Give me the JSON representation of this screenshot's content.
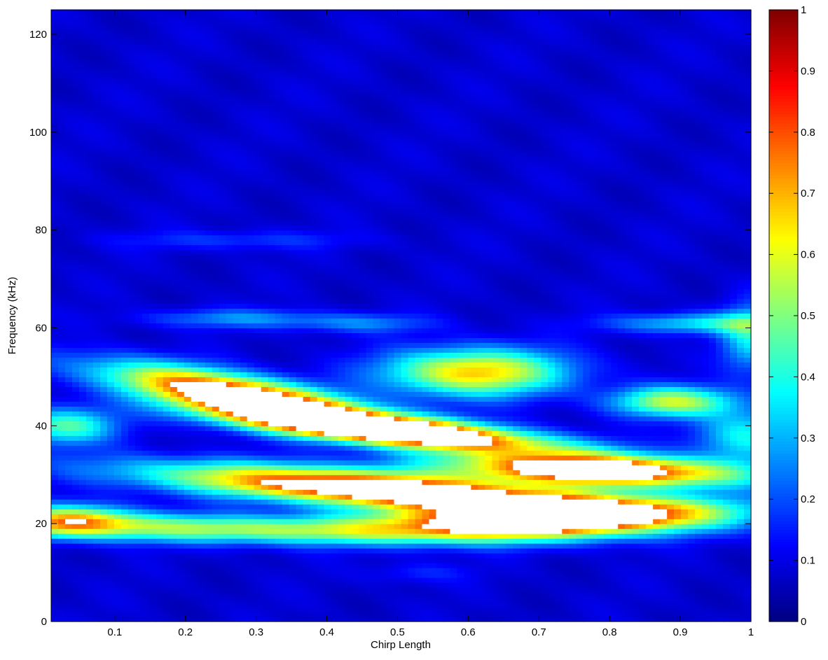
{
  "chart_data": {
    "type": "heatmap",
    "title": "",
    "xlabel": "Chirp Length",
    "ylabel": "Frequency (kHz)",
    "xlim": [
      0.01,
      1.0
    ],
    "ylim": [
      0,
      125
    ],
    "xticks": [
      0.1,
      0.2,
      0.3,
      0.4,
      0.5,
      0.6,
      0.7,
      0.8,
      0.9,
      1
    ],
    "xtick_labels": [
      "0.1",
      "0.2",
      "0.3",
      "0.4",
      "0.5",
      "0.6",
      "0.7",
      "0.8",
      "0.9",
      "1"
    ],
    "yticks": [
      0,
      20,
      40,
      60,
      80,
      100,
      120
    ],
    "ytick_labels": [
      "0",
      "20",
      "40",
      "60",
      "80",
      "100",
      "120"
    ],
    "colormap": "jet",
    "colorbar": {
      "range": [
        0,
        1
      ],
      "ticks": [
        0,
        0.1,
        0.2,
        0.3,
        0.4,
        0.5,
        0.6,
        0.7,
        0.8,
        0.9,
        1
      ],
      "tick_labels": [
        "0",
        "0.1",
        "0.2",
        "0.3",
        "0.4",
        "0.5",
        "0.6",
        "0.7",
        "0.8",
        "0.9",
        "1"
      ],
      "placement": "right"
    },
    "saturation_color": "#ffffff",
    "background_value": 0.08,
    "features": [
      {
        "x": 0.28,
        "y": 46,
        "sx": 0.13,
        "sy": 3.0,
        "angle_kHz_per_unit": -25,
        "amp": 0.9
      },
      {
        "x": 0.5,
        "y": 39,
        "sx": 0.16,
        "sy": 2.2,
        "angle_kHz_per_unit": -14,
        "amp": 0.92
      },
      {
        "x": 0.78,
        "y": 31,
        "sx": 0.14,
        "sy": 2.2,
        "angle_kHz_per_unit": -5,
        "amp": 0.9
      },
      {
        "x": 0.48,
        "y": 27,
        "sx": 0.22,
        "sy": 2.6,
        "angle_kHz_per_unit": -10,
        "amp": 0.92
      },
      {
        "x": 0.72,
        "y": 21,
        "sx": 0.16,
        "sy": 2.6,
        "angle_kHz_per_unit": 5,
        "amp": 0.95
      },
      {
        "x": 0.25,
        "y": 19,
        "sx": 0.25,
        "sy": 2.0,
        "angle_kHz_per_unit": -2,
        "amp": 0.45
      },
      {
        "x": 0.04,
        "y": 21,
        "sx": 0.06,
        "sy": 2.2,
        "angle_kHz_per_unit": 0,
        "amp": 0.45
      },
      {
        "x": 0.03,
        "y": 40,
        "sx": 0.05,
        "sy": 2.6,
        "angle_kHz_per_unit": 0,
        "amp": 0.38
      },
      {
        "x": 0.61,
        "y": 51,
        "sx": 0.09,
        "sy": 3.4,
        "angle_kHz_per_unit": 0,
        "amp": 0.6
      },
      {
        "x": 0.89,
        "y": 45,
        "sx": 0.06,
        "sy": 2.2,
        "angle_kHz_per_unit": 0,
        "amp": 0.48
      },
      {
        "x": 0.93,
        "y": 61,
        "sx": 0.09,
        "sy": 1.5,
        "angle_kHz_per_unit": 0,
        "amp": 0.28
      },
      {
        "x": 0.99,
        "y": 38,
        "sx": 0.05,
        "sy": 4.0,
        "angle_kHz_per_unit": 0,
        "amp": 0.3
      },
      {
        "x": 1.0,
        "y": 58,
        "sx": 0.03,
        "sy": 5.0,
        "angle_kHz_per_unit": 0,
        "amp": 0.28
      },
      {
        "x": 0.27,
        "y": 62,
        "sx": 0.09,
        "sy": 1.4,
        "angle_kHz_per_unit": 0,
        "amp": 0.18
      },
      {
        "x": 0.45,
        "y": 61,
        "sx": 0.07,
        "sy": 1.4,
        "angle_kHz_per_unit": 0,
        "amp": 0.16
      },
      {
        "x": 0.27,
        "y": 78,
        "sx": 0.12,
        "sy": 1.4,
        "angle_kHz_per_unit": 0,
        "amp": 0.1
      },
      {
        "x": 0.53,
        "y": 10,
        "sx": 0.05,
        "sy": 1.5,
        "angle_kHz_per_unit": 0,
        "amp": 0.08
      }
    ]
  }
}
